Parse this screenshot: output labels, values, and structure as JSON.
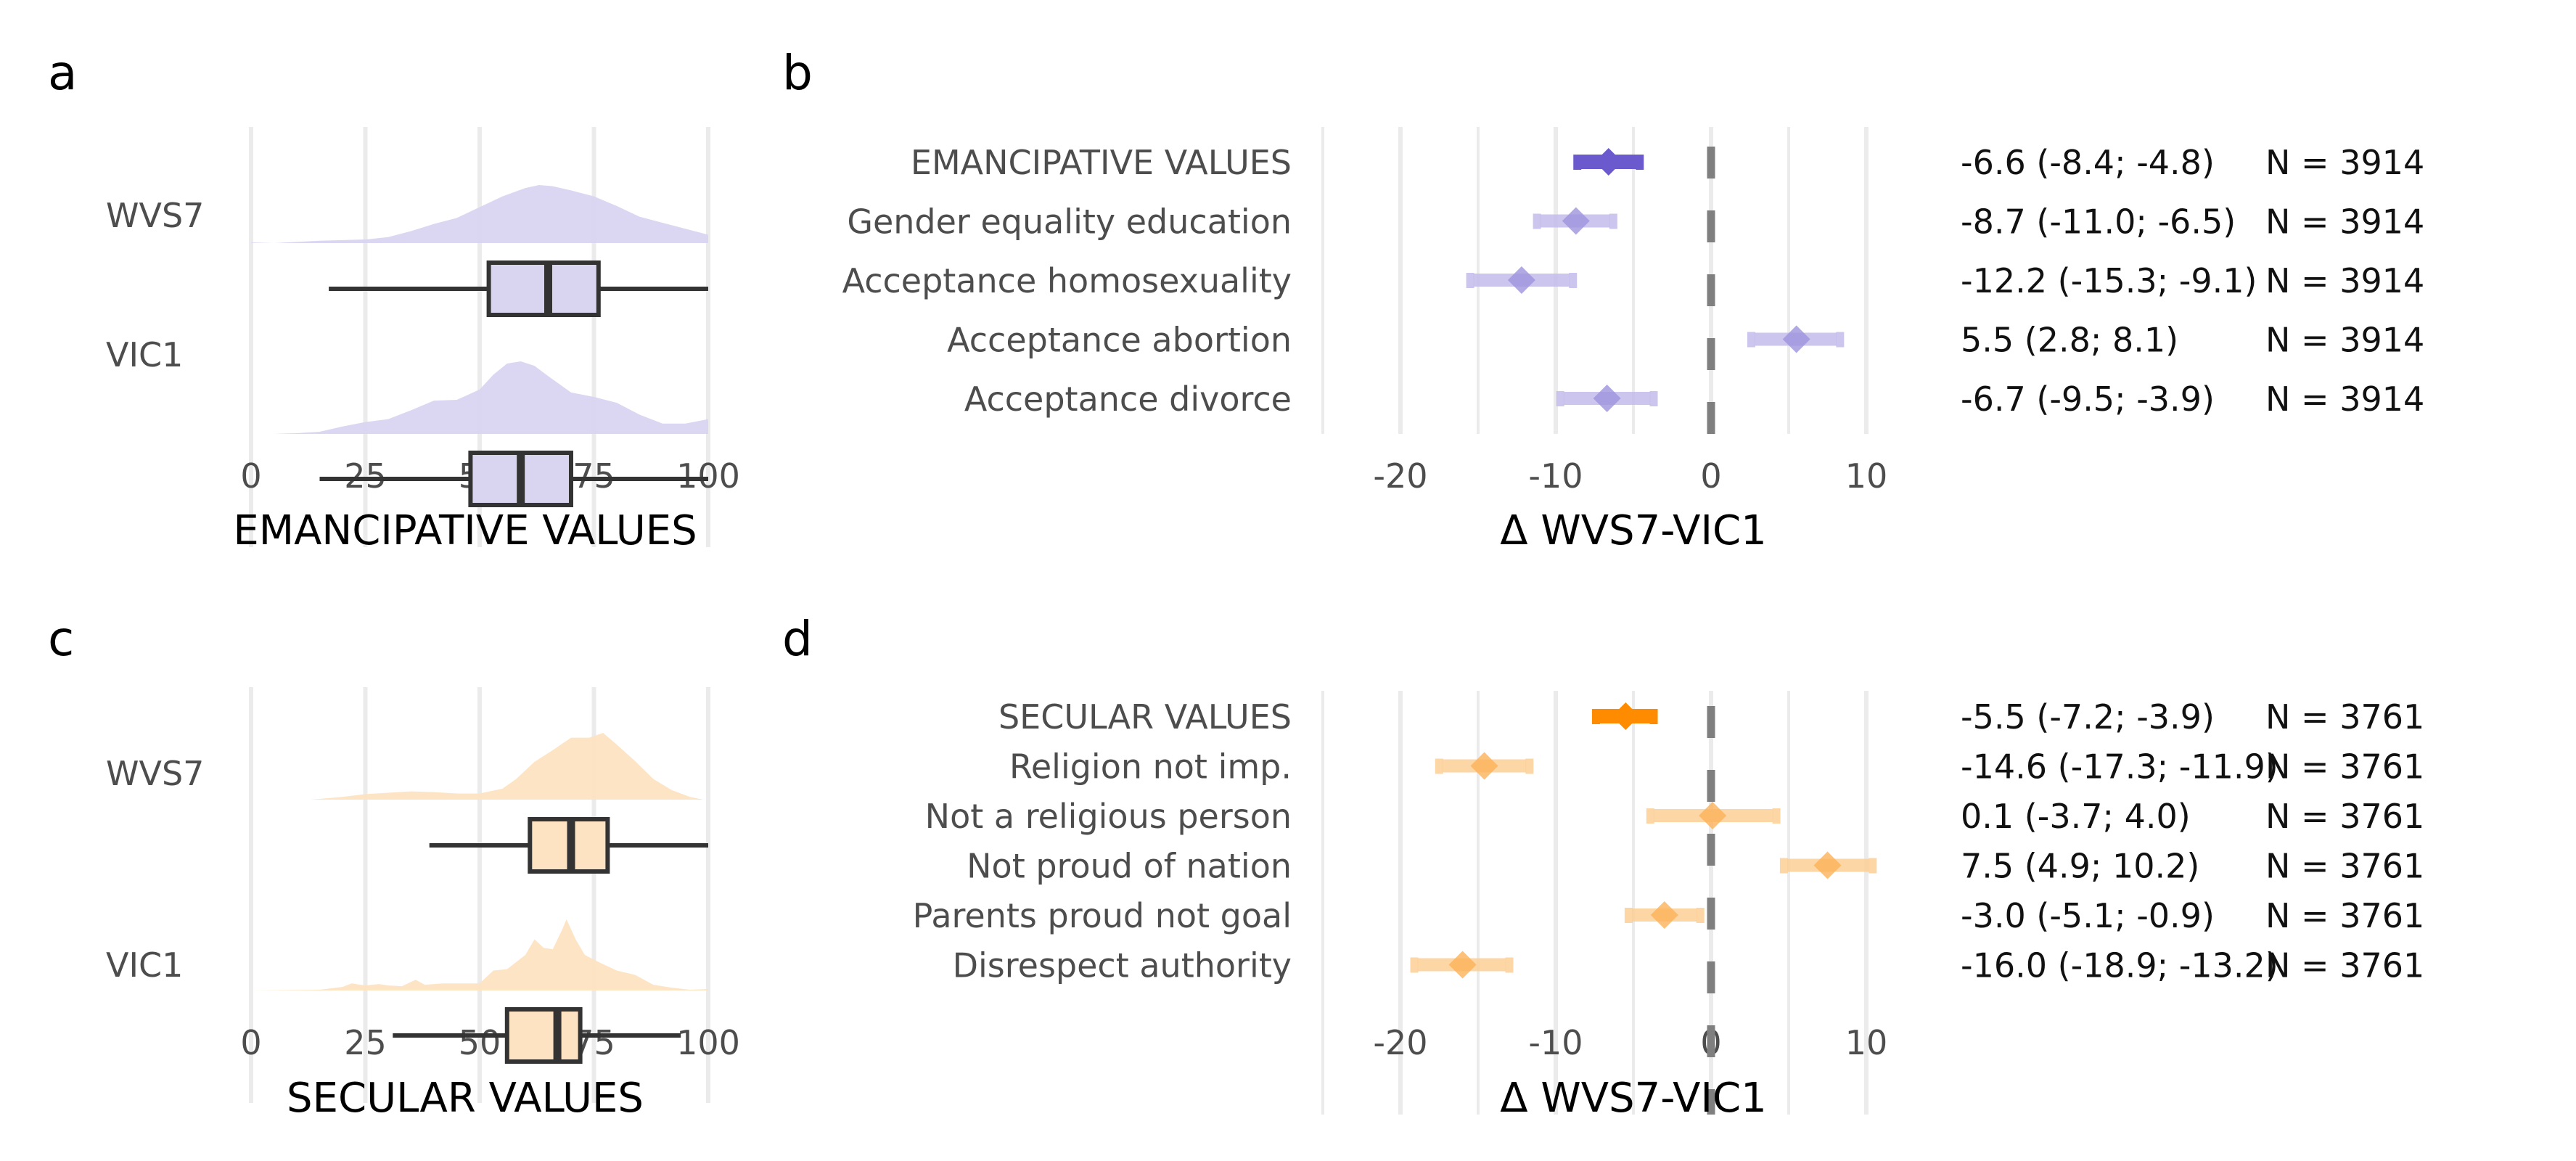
{
  "figure": {
    "panels": [
      "a",
      "b",
      "c",
      "d"
    ]
  },
  "chart_data": [
    {
      "id": "a",
      "type": "boxplot+density",
      "panel_label": "a",
      "xlabel": "EMANCIPATIVE VALUES",
      "xlim": [
        0,
        100
      ],
      "xticks": [
        0,
        25,
        50,
        75,
        100
      ],
      "xtick_labels": [
        "0",
        "25",
        "50",
        "75",
        "100"
      ],
      "grid": true,
      "fill_color": "#d9d4f0",
      "groups": [
        {
          "name": "WVS7",
          "box": {
            "whisker_low": 17,
            "q1": 52,
            "median": 65,
            "q3": 76,
            "whisker_high": 100
          },
          "density": {
            "x": [
              0,
              5,
              10,
              15,
              20,
              25,
              30,
              35,
              40,
              45,
              50,
              55,
              60,
              63,
              66,
              70,
              75,
              80,
              85,
              90,
              95,
              100
            ],
            "y": [
              0.01,
              0.0,
              0.02,
              0.04,
              0.05,
              0.06,
              0.1,
              0.2,
              0.32,
              0.42,
              0.6,
              0.78,
              0.92,
              0.97,
              0.95,
              0.88,
              0.78,
              0.62,
              0.44,
              0.34,
              0.24,
              0.14
            ]
          }
        },
        {
          "name": "VIC1",
          "box": {
            "whisker_low": 15,
            "q1": 48,
            "median": 59,
            "q3": 70,
            "whisker_high": 100
          },
          "density": {
            "x": [
              0,
              5,
              10,
              15,
              20,
              25,
              30,
              35,
              40,
              45,
              50,
              53,
              56,
              59,
              62,
              65,
              70,
              75,
              80,
              85,
              90,
              95,
              100
            ],
            "y": [
              0.0,
              0.0,
              0.01,
              0.03,
              0.1,
              0.16,
              0.2,
              0.32,
              0.45,
              0.46,
              0.6,
              0.8,
              0.95,
              0.98,
              0.92,
              0.78,
              0.56,
              0.5,
              0.42,
              0.26,
              0.14,
              0.14,
              0.2
            ]
          }
        }
      ]
    },
    {
      "id": "b",
      "type": "forest",
      "panel_label": "b",
      "xlabel": "Δ WVS7-VIC1",
      "xlim": [
        -25,
        12
      ],
      "xticks": [
        -20,
        -10,
        0,
        10
      ],
      "xtick_labels": [
        "-20",
        "-10",
        "0",
        "10"
      ],
      "minor_gridlines": [
        -25,
        -15,
        -5,
        5
      ],
      "reference_line": 0,
      "main_color": "#6a5acd",
      "item_color": "#c3bceb",
      "rows": [
        {
          "label": "EMANCIPATIVE VALUES",
          "estimate": -6.6,
          "ci_low": -8.4,
          "ci_high": -4.8,
          "n": 3914,
          "summary": true,
          "stat_text": "-6.6 (-8.4; -4.8)",
          "n_text": "N = 3914"
        },
        {
          "label": "Gender equality education",
          "estimate": -8.7,
          "ci_low": -11.0,
          "ci_high": -6.5,
          "n": 3914,
          "summary": false,
          "stat_text": "-8.7 (-11.0; -6.5)",
          "n_text": "N = 3914"
        },
        {
          "label": "Acceptance homosexuality",
          "estimate": -12.2,
          "ci_low": -15.3,
          "ci_high": -9.1,
          "n": 3914,
          "summary": false,
          "stat_text": "-12.2 (-15.3; -9.1)",
          "n_text": "N = 3914"
        },
        {
          "label": "Acceptance abortion",
          "estimate": 5.5,
          "ci_low": 2.8,
          "ci_high": 8.1,
          "n": 3914,
          "summary": false,
          "stat_text": "5.5 (2.8; 8.1)",
          "n_text": "N = 3914"
        },
        {
          "label": "Acceptance divorce",
          "estimate": -6.7,
          "ci_low": -9.5,
          "ci_high": -3.9,
          "n": 3914,
          "summary": false,
          "stat_text": "-6.7 (-9.5; -3.9)",
          "n_text": "N = 3914"
        }
      ]
    },
    {
      "id": "c",
      "type": "boxplot+density",
      "panel_label": "c",
      "xlabel": "SECULAR VALUES",
      "xlim": [
        0,
        100
      ],
      "xticks": [
        0,
        25,
        50,
        75,
        100
      ],
      "xtick_labels": [
        "0",
        "25",
        "50",
        "75",
        "100"
      ],
      "grid": true,
      "fill_color": "#fde3c2",
      "groups": [
        {
          "name": "WVS7",
          "box": {
            "whisker_low": 39,
            "q1": 61,
            "median": 70,
            "q3": 78,
            "whisker_high": 100
          },
          "density": {
            "x": [
              13,
              20,
              25,
              30,
              35,
              40,
              45,
              50,
              55,
              58,
              62,
              66,
              70,
              74,
              77,
              80,
              84,
              88,
              92,
              96,
              99
            ],
            "y": [
              0.0,
              0.04,
              0.08,
              0.1,
              0.12,
              0.11,
              0.09,
              0.09,
              0.16,
              0.3,
              0.55,
              0.72,
              0.9,
              0.9,
              0.97,
              0.8,
              0.56,
              0.3,
              0.14,
              0.04,
              0.0
            ]
          }
        },
        {
          "name": "VIC1",
          "box": {
            "whisker_low": 31,
            "q1": 56,
            "median": 67,
            "q3": 72,
            "whisker_high": 94
          },
          "density": {
            "x": [
              0,
              15,
              20,
              22,
              25,
              28,
              30,
              33,
              36,
              38,
              42,
              46,
              50,
              53,
              56,
              60,
              62,
              64,
              66,
              68,
              69,
              71,
              73,
              76,
              80,
              84,
              88,
              92,
              96,
              100
            ],
            "y": [
              0.0,
              0.01,
              0.05,
              0.1,
              0.07,
              0.09,
              0.07,
              0.06,
              0.15,
              0.08,
              0.1,
              0.1,
              0.1,
              0.28,
              0.3,
              0.5,
              0.72,
              0.6,
              0.58,
              0.85,
              1.0,
              0.72,
              0.5,
              0.4,
              0.28,
              0.22,
              0.08,
              0.04,
              0.01,
              0.02
            ]
          }
        }
      ]
    },
    {
      "id": "d",
      "type": "forest",
      "panel_label": "d",
      "xlabel": "Δ WVS7-VIC1",
      "xlim": [
        -25,
        12
      ],
      "xticks": [
        -20,
        -10,
        0,
        10
      ],
      "xtick_labels": [
        "-20",
        "-10",
        "0",
        "10"
      ],
      "minor_gridlines": [
        -25,
        -15,
        -5,
        5
      ],
      "reference_line": 0,
      "main_color": "#ff8c00",
      "item_color": "#fdcf96",
      "rows": [
        {
          "label": "SECULAR VALUES",
          "estimate": -5.5,
          "ci_low": -7.2,
          "ci_high": -3.9,
          "n": 3761,
          "summary": true,
          "stat_text": "-5.5 (-7.2; -3.9)",
          "n_text": "N = 3761"
        },
        {
          "label": "Religion not imp.",
          "estimate": -14.6,
          "ci_low": -17.3,
          "ci_high": -11.9,
          "n": 3761,
          "summary": false,
          "stat_text": "-14.6 (-17.3; -11.9)",
          "n_text": "N = 3761"
        },
        {
          "label": "Not a religious person",
          "estimate": 0.1,
          "ci_low": -3.7,
          "ci_high": 4.0,
          "n": 3761,
          "summary": false,
          "stat_text": "0.1 (-3.7; 4.0)",
          "n_text": "N = 3761"
        },
        {
          "label": "Not proud of nation",
          "estimate": 7.5,
          "ci_low": 4.9,
          "ci_high": 10.2,
          "n": 3761,
          "summary": false,
          "stat_text": "7.5 (4.9; 10.2)",
          "n_text": "N = 3761"
        },
        {
          "label": "Parents proud not goal",
          "estimate": -3.0,
          "ci_low": -5.1,
          "ci_high": -0.9,
          "n": 3761,
          "summary": false,
          "stat_text": "-3.0 (-5.1; -0.9)",
          "n_text": "N = 3761"
        },
        {
          "label": "Disrespect authority",
          "estimate": -16.0,
          "ci_low": -18.9,
          "ci_high": -13.2,
          "n": 3761,
          "summary": false,
          "stat_text": "-16.0 (-18.9; -13.2)",
          "n_text": "N = 3761"
        }
      ]
    }
  ]
}
